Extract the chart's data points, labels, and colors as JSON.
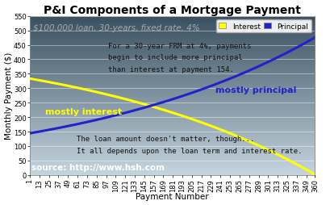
{
  "title": "P&I Components of a Mortgage Payment",
  "subtitle": "$100,000 loan, 30-years, fixed rate, 4%",
  "xlabel": "Payment Number",
  "ylabel": "Monthly Payment ($)",
  "loan_amount": 100000,
  "annual_rate": 0.04,
  "n_payments": 360,
  "ylim": [
    0,
    550
  ],
  "yticks": [
    0,
    50,
    100,
    150,
    200,
    250,
    300,
    350,
    400,
    450,
    500,
    550
  ],
  "xtick_values": [
    1,
    13,
    25,
    37,
    49,
    61,
    73,
    85,
    97,
    109,
    121,
    133,
    145,
    157,
    169,
    181,
    193,
    205,
    217,
    229,
    241,
    253,
    265,
    277,
    289,
    301,
    313,
    325,
    337,
    349,
    360
  ],
  "interest_color": "#FFFF00",
  "principal_color": "#2222CC",
  "bg_light_color": "#c5d5df",
  "bg_dark_color": "#3a5060",
  "grid_color": "#aabbcc",
  "annotation1_line1": "For a 30-year FRM at 4%, payments",
  "annotation1_line2": "begin to include more principal",
  "annotation1_line3": "than interest at payment 154.",
  "annotation2": "The loan amount doesn't matter, though...",
  "annotation3": "It all depends upon the loan term and interest rate.",
  "label_interest": "mostly interest",
  "label_principal": "mostly principal",
  "source_text": "source: http://www.hsh.com",
  "legend_interest": "Interest",
  "legend_principal": "Principal",
  "title_fontsize": 10,
  "subtitle_fontsize": 7.5,
  "axis_label_fontsize": 7.5,
  "tick_fontsize": 6,
  "annotation_fontsize": 6.5,
  "label_fontsize": 8,
  "source_fontsize": 7.5
}
